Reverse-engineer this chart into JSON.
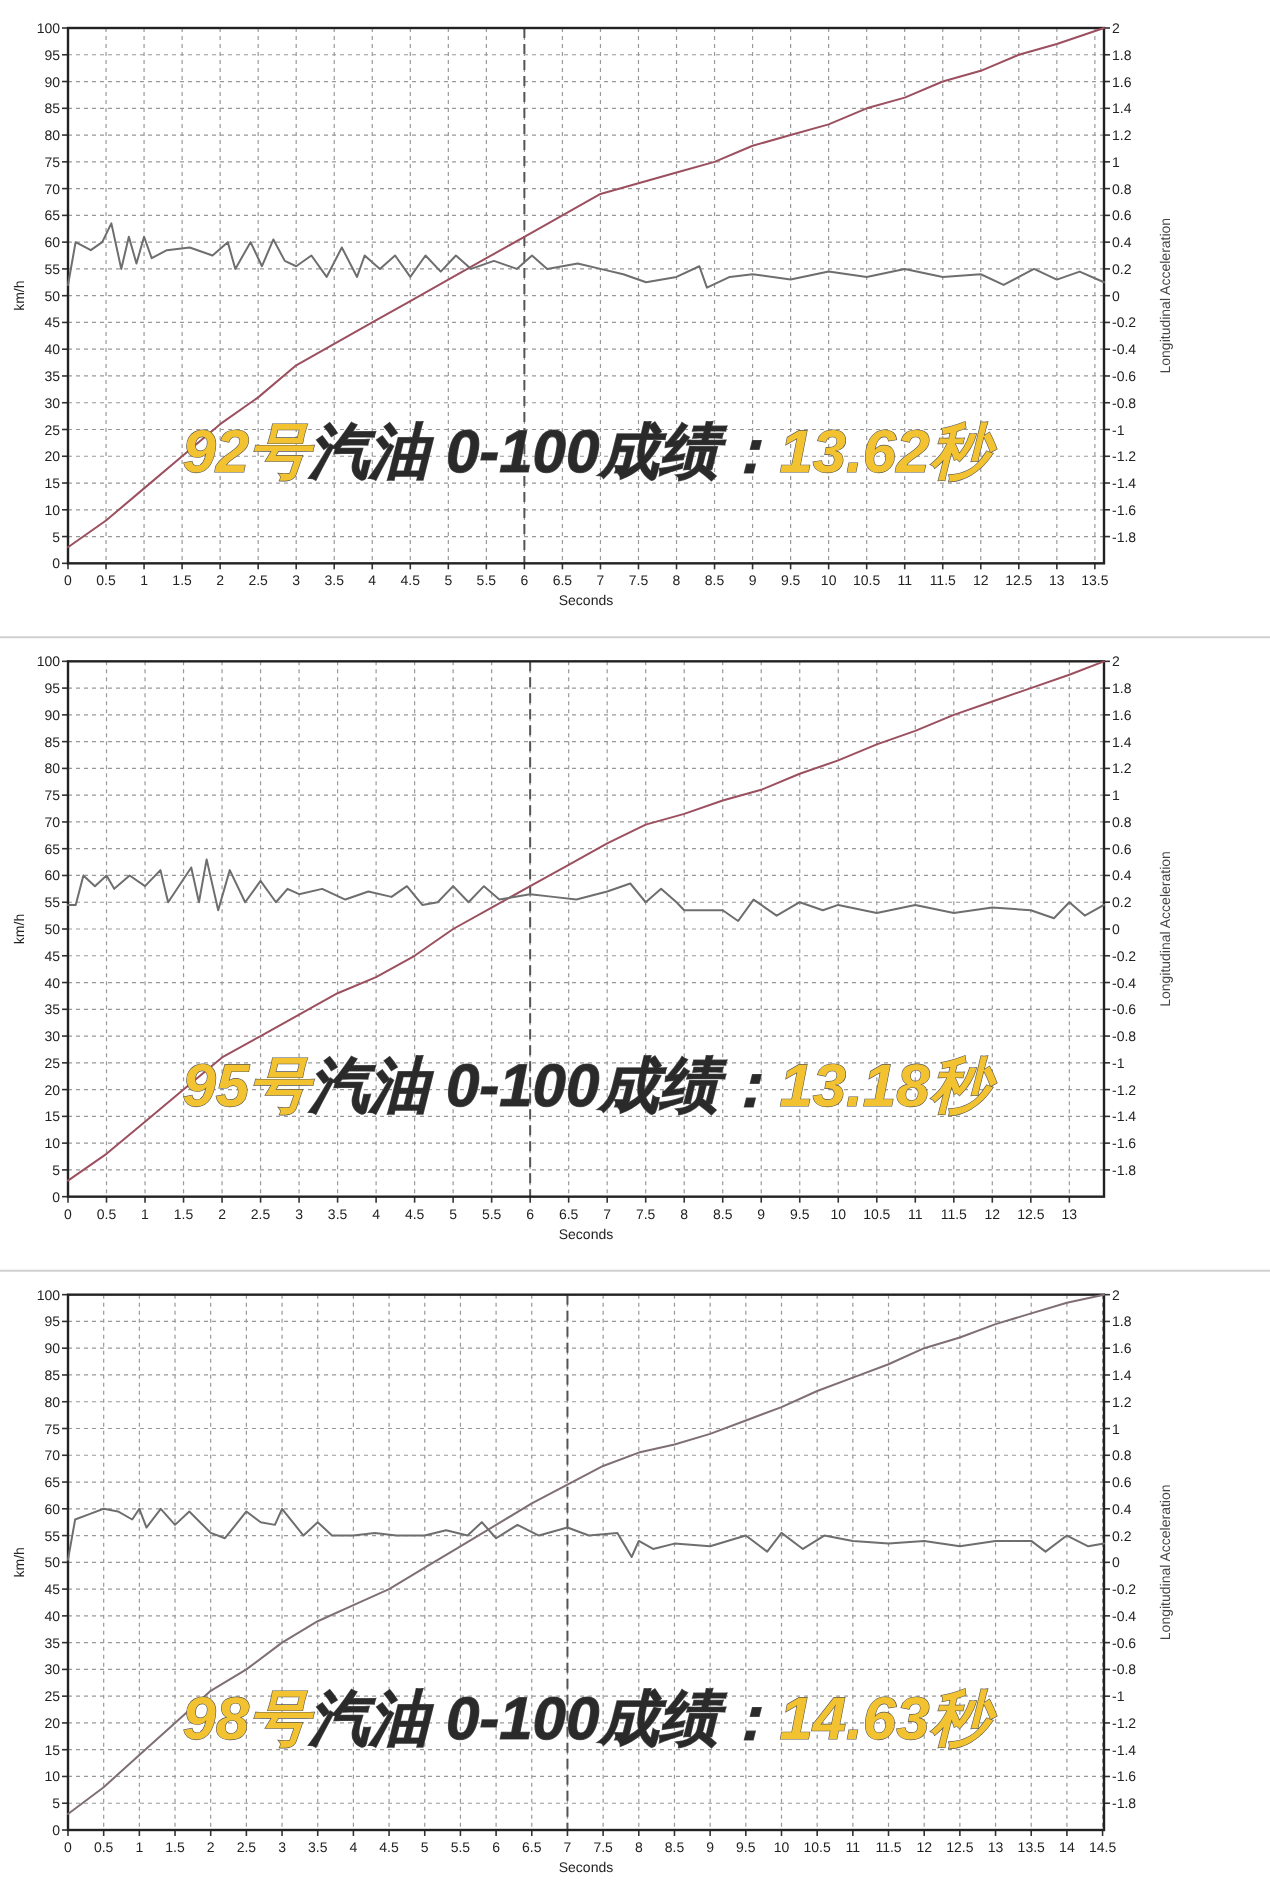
{
  "chart_data": [
    {
      "type": "line",
      "xlabel": "Seconds",
      "ylabel": "km/h",
      "y2label": "Longitudinal Acceleration",
      "xlim": [
        0,
        13.62
      ],
      "xticks": [
        0,
        0.5,
        1,
        1.5,
        2,
        2.5,
        3,
        3.5,
        4,
        4.5,
        5,
        5.5,
        6,
        6.5,
        7,
        7.5,
        8,
        8.5,
        9,
        9.5,
        10,
        10.5,
        11,
        11.5,
        12,
        12.5,
        13,
        13.5
      ],
      "ylim": [
        0,
        100
      ],
      "yticks": [
        0,
        5,
        10,
        15,
        20,
        25,
        30,
        35,
        40,
        45,
        50,
        55,
        60,
        65,
        70,
        75,
        80,
        85,
        90,
        95,
        100
      ],
      "y2lim": [
        -2,
        2
      ],
      "y2ticks": [
        -1.8,
        -1.6,
        -1.4,
        -1.2,
        -1,
        -0.8,
        -0.6,
        -0.4,
        -0.2,
        0,
        0.2,
        0.4,
        0.6,
        0.8,
        1,
        1.2,
        1.4,
        1.6,
        1.8,
        2
      ],
      "grid": true,
      "ref_lines": [
        {
          "axis": "x",
          "value": 6,
          "line_style": "dashed"
        }
      ],
      "annotations": [
        "92号",
        "汽油 0-100成绩：",
        "13.62秒"
      ],
      "series": [
        {
          "color": "#9b4f5f",
          "x": [
            0,
            0.5,
            1,
            1.5,
            2,
            2.5,
            3,
            3.5,
            4,
            4.5,
            5,
            5.5,
            6,
            6.5,
            7,
            7.5,
            8,
            8.5,
            9,
            9.5,
            10,
            10.5,
            11,
            11.5,
            12,
            12.5,
            13,
            13.62
          ],
          "values": [
            3,
            8,
            14,
            20,
            26,
            31,
            37,
            41,
            45,
            49,
            53,
            57,
            61,
            65,
            69,
            71,
            73,
            75,
            78,
            80,
            82,
            85,
            87,
            90,
            92,
            95,
            97,
            100
          ]
        },
        {
          "axis": "y2",
          "color": "#6e6e6e",
          "x": [
            0,
            0.1,
            0.3,
            0.45,
            0.57,
            0.7,
            0.8,
            0.9,
            1,
            1.1,
            1.3,
            1.6,
            1.9,
            2.1,
            2.2,
            2.4,
            2.55,
            2.7,
            2.85,
            3,
            3.2,
            3.4,
            3.6,
            3.8,
            3.9,
            4.1,
            4.3,
            4.5,
            4.7,
            4.9,
            5.1,
            5.3,
            5.6,
            5.9,
            6.1,
            6.3,
            6.7,
            7,
            7.3,
            7.6,
            8,
            8.3,
            8.4,
            8.7,
            9,
            9.5,
            10,
            10.5,
            11,
            11.5,
            12,
            12.3,
            12.7,
            13,
            13.3,
            13.62
          ],
          "values": [
            0.08,
            0.4,
            0.34,
            0.4,
            0.54,
            0.2,
            0.44,
            0.24,
            0.44,
            0.28,
            0.34,
            0.36,
            0.3,
            0.4,
            0.2,
            0.4,
            0.22,
            0.42,
            0.26,
            0.22,
            0.3,
            0.14,
            0.36,
            0.14,
            0.3,
            0.2,
            0.3,
            0.14,
            0.3,
            0.18,
            0.3,
            0.2,
            0.26,
            0.2,
            0.3,
            0.2,
            0.24,
            0.2,
            0.16,
            0.1,
            0.14,
            0.22,
            0.06,
            0.14,
            0.16,
            0.12,
            0.18,
            0.14,
            0.2,
            0.14,
            0.16,
            0.08,
            0.2,
            0.12,
            0.18,
            0.1
          ]
        }
      ]
    },
    {
      "type": "line",
      "xlabel": "Seconds",
      "ylabel": "km/h",
      "y2label": "Longitudinal Acceleration",
      "xlim": [
        0,
        13.45
      ],
      "xticks": [
        0,
        0.5,
        1,
        1.5,
        2,
        2.5,
        3,
        3.5,
        4,
        4.5,
        5,
        5.5,
        6,
        6.5,
        7,
        7.5,
        8,
        8.5,
        9,
        9.5,
        10,
        10.5,
        11,
        11.5,
        12,
        12.5,
        13
      ],
      "ylim": [
        0,
        100
      ],
      "yticks": [
        0,
        5,
        10,
        15,
        20,
        25,
        30,
        35,
        40,
        45,
        50,
        55,
        60,
        65,
        70,
        75,
        80,
        85,
        90,
        95,
        100
      ],
      "y2lim": [
        -2,
        2
      ],
      "y2ticks": [
        -1.8,
        -1.6,
        -1.4,
        -1.2,
        -1,
        -0.8,
        -0.6,
        -0.4,
        -0.2,
        0,
        0.2,
        0.4,
        0.6,
        0.8,
        1,
        1.2,
        1.4,
        1.6,
        1.8,
        2
      ],
      "grid": true,
      "ref_lines": [
        {
          "axis": "x",
          "value": 6,
          "line_style": "dashed"
        }
      ],
      "annotations": [
        "95号",
        "汽油 0-100成绩：",
        "13.18秒"
      ],
      "series": [
        {
          "color": "#9b4f5f",
          "x": [
            0,
            0.5,
            1,
            1.5,
            2,
            2.5,
            3,
            3.5,
            4,
            4.5,
            5,
            5.5,
            6,
            6.5,
            7,
            7.5,
            8,
            8.5,
            9,
            9.5,
            10,
            10.5,
            11,
            11.5,
            12,
            12.5,
            13,
            13.45
          ],
          "values": [
            3,
            8,
            14,
            20,
            26,
            30,
            34,
            38,
            41,
            45,
            50,
            54,
            58,
            62,
            66,
            69.5,
            71.5,
            74,
            76,
            79,
            81.5,
            84.5,
            87,
            90,
            92.5,
            95,
            97.5,
            100
          ]
        },
        {
          "axis": "y2",
          "color": "#6e6e6e",
          "x": [
            0,
            0.1,
            0.2,
            0.35,
            0.5,
            0.6,
            0.8,
            1,
            1.2,
            1.3,
            1.6,
            1.7,
            1.8,
            1.95,
            2.1,
            2.3,
            2.5,
            2.7,
            2.85,
            3,
            3.3,
            3.6,
            3.9,
            4.2,
            4.4,
            4.6,
            4.8,
            5,
            5.2,
            5.4,
            5.6,
            6,
            6.3,
            6.6,
            7,
            7.3,
            7.5,
            7.7,
            7.9,
            8,
            8.5,
            8.7,
            8.9,
            9.2,
            9.5,
            9.8,
            10,
            10.5,
            11,
            11.5,
            12,
            12.5,
            12.8,
            13,
            13.2,
            13.45
          ],
          "values": [
            0.18,
            0.18,
            0.4,
            0.32,
            0.4,
            0.3,
            0.4,
            0.32,
            0.44,
            0.2,
            0.46,
            0.2,
            0.52,
            0.14,
            0.44,
            0.2,
            0.36,
            0.2,
            0.3,
            0.26,
            0.3,
            0.22,
            0.28,
            0.24,
            0.32,
            0.18,
            0.2,
            0.32,
            0.2,
            0.32,
            0.22,
            0.26,
            0.24,
            0.22,
            0.28,
            0.34,
            0.2,
            0.3,
            0.2,
            0.14,
            0.14,
            0.06,
            0.22,
            0.1,
            0.2,
            0.14,
            0.18,
            0.12,
            0.18,
            0.12,
            0.16,
            0.14,
            0.08,
            0.2,
            0.1,
            0.18
          ]
        }
      ]
    },
    {
      "type": "line",
      "xlabel": "Seconds",
      "ylabel": "km/h",
      "y2label": "Longitudinal Acceleration",
      "xlim": [
        0,
        14.52
      ],
      "xticks": [
        0,
        0.5,
        1,
        1.5,
        2,
        2.5,
        3,
        3.5,
        4,
        4.5,
        5,
        5.5,
        6,
        6.5,
        7,
        7.5,
        8,
        8.5,
        9,
        9.5,
        10,
        10.5,
        11,
        11.5,
        12,
        12.5,
        13,
        13.5,
        14,
        14.5
      ],
      "ylim": [
        0,
        100
      ],
      "yticks": [
        0,
        5,
        10,
        15,
        20,
        25,
        30,
        35,
        40,
        45,
        50,
        55,
        60,
        65,
        70,
        75,
        80,
        85,
        90,
        95,
        100
      ],
      "y2lim": [
        -2,
        2
      ],
      "y2ticks": [
        -1.8,
        -1.6,
        -1.4,
        -1.2,
        -1,
        -0.8,
        -0.6,
        -0.4,
        -0.2,
        0,
        0.2,
        0.4,
        0.6,
        0.8,
        1,
        1.2,
        1.4,
        1.6,
        1.8,
        2
      ],
      "grid": true,
      "ref_lines": [
        {
          "axis": "x",
          "value": 7,
          "line_style": "dashed"
        }
      ],
      "annotations": [
        "98号",
        "汽油 0-100成绩：",
        "14.63秒"
      ],
      "series": [
        {
          "color": "#7f6f74",
          "x": [
            0,
            0.5,
            1,
            1.5,
            2,
            2.5,
            3,
            3.5,
            4,
            4.5,
            5,
            5.5,
            6,
            6.5,
            7,
            7.5,
            8,
            8.5,
            9,
            9.5,
            10,
            10.5,
            11,
            11.5,
            12,
            12.5,
            13,
            13.5,
            14,
            14.52
          ],
          "values": [
            3,
            8,
            14,
            20,
            26,
            30,
            35,
            39,
            42,
            45,
            49,
            53,
            57,
            61,
            64.5,
            68,
            70.5,
            72,
            74,
            76.5,
            79,
            82,
            84.5,
            87,
            90,
            92,
            94.5,
            96.5,
            98.5,
            100
          ]
        },
        {
          "axis": "y2",
          "color": "#6e6e6e",
          "x": [
            0,
            0.1,
            0.3,
            0.5,
            0.7,
            0.9,
            1,
            1.1,
            1.3,
            1.5,
            1.7,
            2,
            2.2,
            2.5,
            2.7,
            2.9,
            3,
            3.3,
            3.5,
            3.7,
            4,
            4.3,
            4.6,
            5,
            5.3,
            5.6,
            5.8,
            6,
            6.3,
            6.6,
            7,
            7.3,
            7.7,
            7.9,
            8,
            8.2,
            8.5,
            9,
            9.5,
            9.8,
            10,
            10.3,
            10.6,
            11,
            11.5,
            12,
            12.5,
            13,
            13.5,
            13.7,
            14,
            14.3,
            14.52
          ],
          "values": [
            0.02,
            0.32,
            0.36,
            0.4,
            0.38,
            0.32,
            0.4,
            0.26,
            0.4,
            0.28,
            0.38,
            0.22,
            0.18,
            0.38,
            0.3,
            0.28,
            0.4,
            0.2,
            0.3,
            0.2,
            0.2,
            0.22,
            0.2,
            0.2,
            0.24,
            0.2,
            0.3,
            0.18,
            0.28,
            0.2,
            0.26,
            0.2,
            0.22,
            0.04,
            0.16,
            0.1,
            0.14,
            0.12,
            0.2,
            0.08,
            0.22,
            0.1,
            0.2,
            0.16,
            0.14,
            0.16,
            0.12,
            0.16,
            0.16,
            0.08,
            0.2,
            0.12,
            0.14
          ]
        }
      ]
    }
  ]
}
